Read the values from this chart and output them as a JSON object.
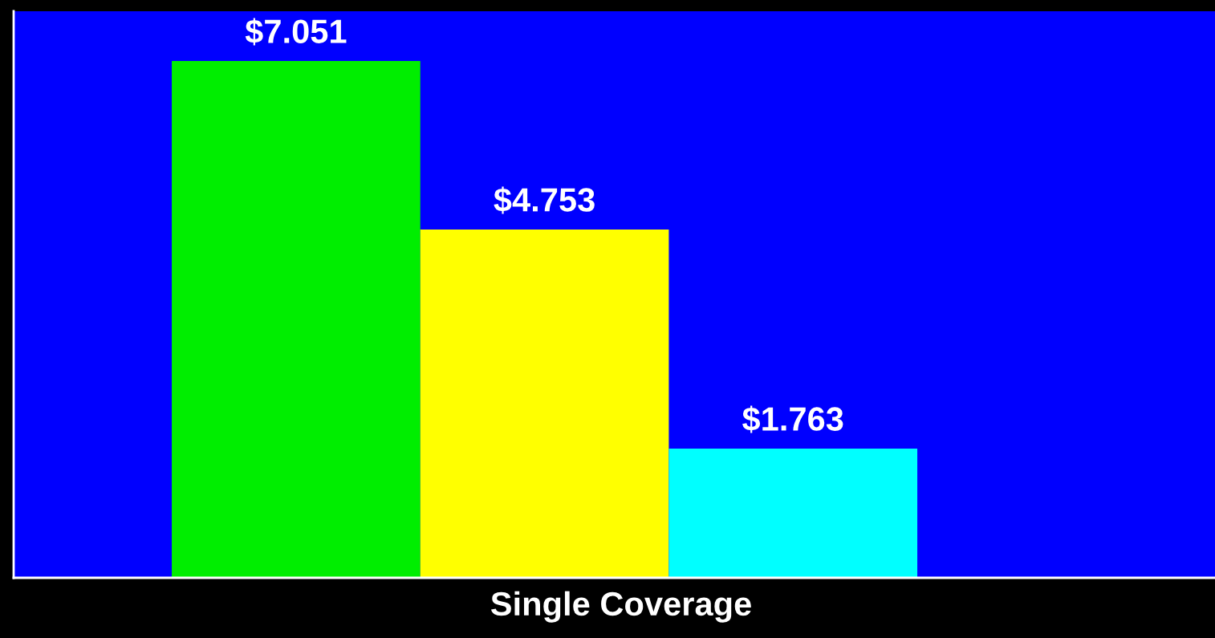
{
  "chart_data": {
    "type": "bar",
    "xlabel": "Single Coverage",
    "categories": [
      null,
      null,
      null
    ],
    "ylim": [
      0,
      7.73
    ],
    "tick_labels": false,
    "grid": false,
    "legend": false,
    "colors": [
      "#00ee00",
      "#ffff00",
      "#00ffff"
    ],
    "values": [
      7.051,
      4.753,
      1.763
    ],
    "value_labels": [
      "$7.051",
      "$4.753",
      "$1.763"
    ]
  }
}
